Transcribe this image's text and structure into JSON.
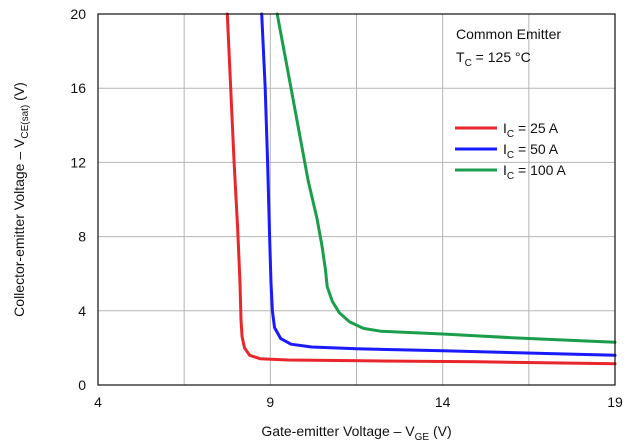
{
  "chart_data": {
    "type": "line",
    "xlabel": {
      "main": "Gate-emitter Voltage – V",
      "sub": "GE",
      "unit": " (V)"
    },
    "ylabel": {
      "main": "Collector-emitter Voltage – V",
      "sub": "CE(sat)",
      "unit": " (V)"
    },
    "xlim": [
      4,
      19
    ],
    "ylim": [
      0,
      20
    ],
    "xticks": [
      4,
      9,
      14,
      19
    ],
    "yticks": [
      0,
      4,
      8,
      12,
      16,
      20
    ],
    "xgrid": [
      4,
      6.5,
      9,
      11.5,
      14,
      16.5,
      19
    ],
    "ygrid": [
      0,
      4,
      8,
      12,
      16,
      20
    ],
    "grid": true,
    "annotation": {
      "line1": "Common Emitter",
      "line2_main": "T",
      "line2_sub": "C",
      "line2_rest": " = 125 °C"
    },
    "legend_position": "right",
    "series": [
      {
        "name": "I_C = 25 A",
        "label_main": "I",
        "label_sub": "C",
        "label_rest": " = 25 A",
        "color": "#e8262c",
        "points": [
          [
            7.75,
            20
          ],
          [
            7.85,
            16
          ],
          [
            7.95,
            12
          ],
          [
            8.05,
            8.5
          ],
          [
            8.12,
            5.5
          ],
          [
            8.15,
            3.5
          ],
          [
            8.18,
            2.6
          ],
          [
            8.25,
            2.0
          ],
          [
            8.4,
            1.6
          ],
          [
            8.7,
            1.42
          ],
          [
            9.5,
            1.35
          ],
          [
            12,
            1.3
          ],
          [
            15,
            1.25
          ],
          [
            19,
            1.15
          ]
        ]
      },
      {
        "name": "I_C = 50 A",
        "label_main": "I",
        "label_sub": "C",
        "label_rest": " = 50 A",
        "color": "#1a1aff",
        "points": [
          [
            8.75,
            20
          ],
          [
            8.85,
            16
          ],
          [
            8.92,
            12
          ],
          [
            8.98,
            8
          ],
          [
            9.02,
            5.5
          ],
          [
            9.06,
            4.0
          ],
          [
            9.12,
            3.1
          ],
          [
            9.3,
            2.5
          ],
          [
            9.6,
            2.2
          ],
          [
            10.2,
            2.05
          ],
          [
            11.5,
            1.95
          ],
          [
            14,
            1.85
          ],
          [
            17,
            1.7
          ],
          [
            19,
            1.6
          ]
        ]
      },
      {
        "name": "I_C = 100 A",
        "label_main": "I",
        "label_sub": "C",
        "label_rest": " = 100 A",
        "color": "#1b9e4b",
        "points": [
          [
            9.2,
            20
          ],
          [
            9.5,
            17
          ],
          [
            9.8,
            14
          ],
          [
            10.1,
            11
          ],
          [
            10.35,
            9
          ],
          [
            10.5,
            7.5
          ],
          [
            10.6,
            6.2
          ],
          [
            10.65,
            5.3
          ],
          [
            10.8,
            4.5
          ],
          [
            11.0,
            3.9
          ],
          [
            11.3,
            3.4
          ],
          [
            11.7,
            3.05
          ],
          [
            12.2,
            2.9
          ],
          [
            14,
            2.75
          ],
          [
            16,
            2.55
          ],
          [
            19,
            2.3
          ]
        ]
      }
    ]
  }
}
